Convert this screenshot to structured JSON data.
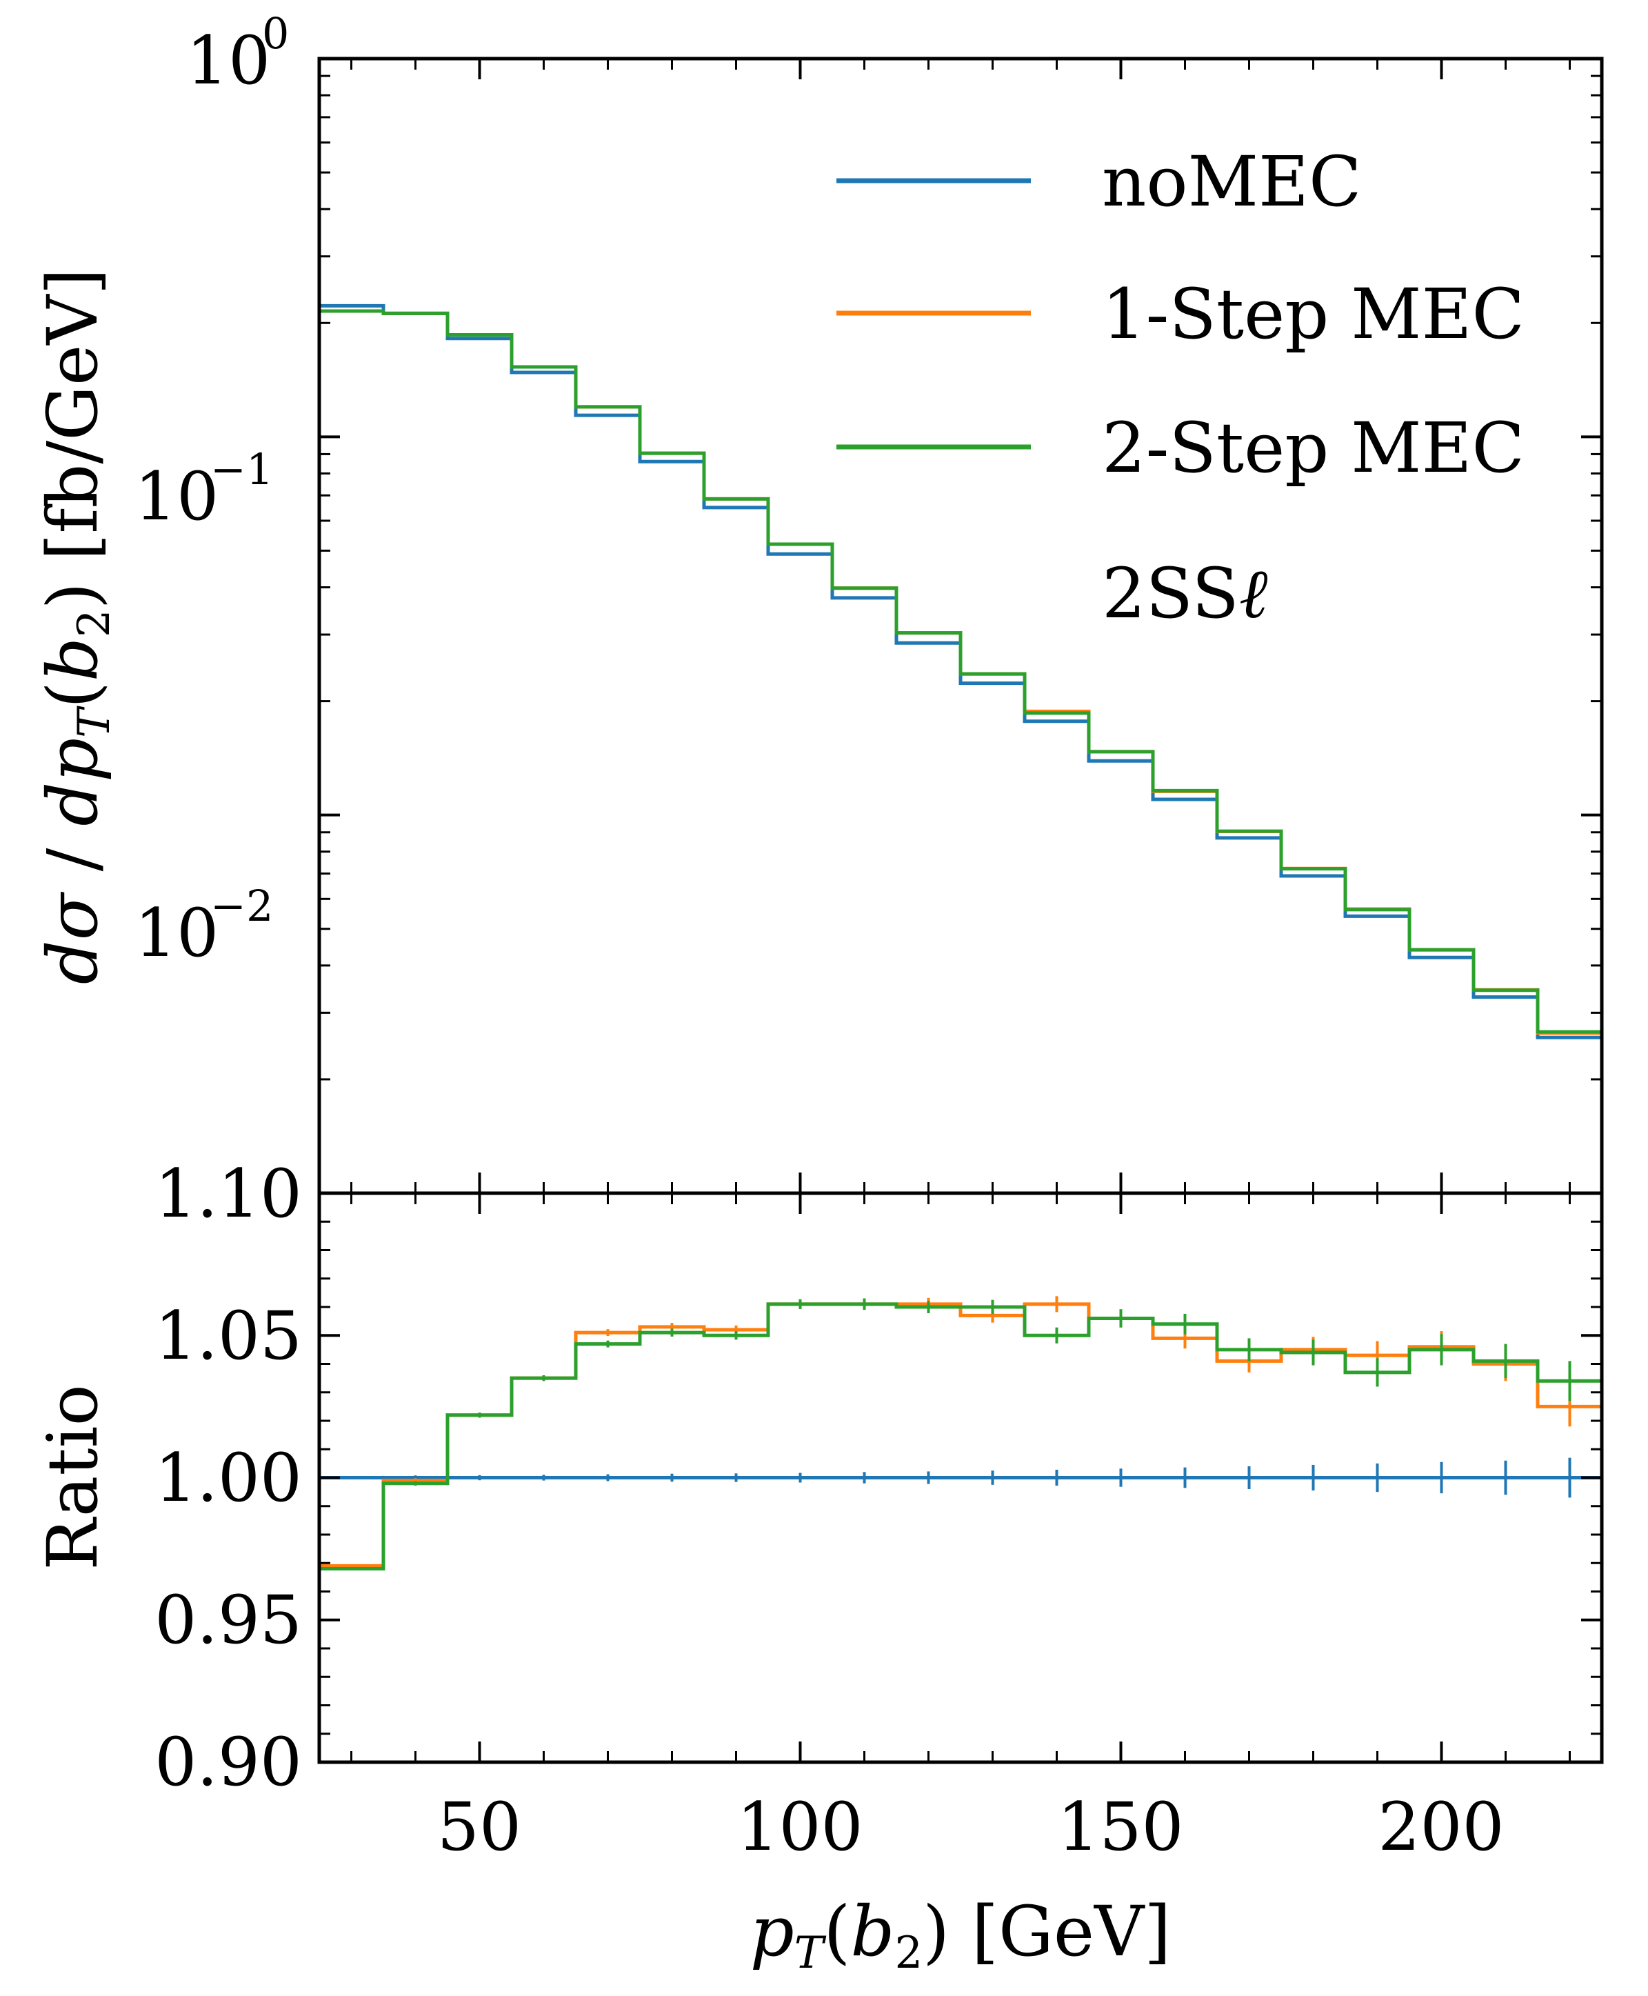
{
  "colors": {
    "noMEC": "#1f77b4",
    "oneStep": "#ff7f0e",
    "twoStep": "#2ca02c",
    "axis": "#000000"
  },
  "chart_data": [
    {
      "type": "line",
      "step": true,
      "yscale": "log",
      "bin_edges": [
        25,
        35,
        45,
        55,
        65,
        75,
        85,
        95,
        105,
        115,
        125,
        135,
        145,
        155,
        165,
        175,
        185,
        195,
        205,
        215,
        225
      ],
      "xlim": [
        25,
        225
      ],
      "ylim": [
        0.001,
        1
      ],
      "ylabel_parts": {
        "d1": "d",
        "sigma": "σ",
        "slash": " / ",
        "d2": "d",
        "p": "p",
        "T": "T",
        "open": "(",
        "b": "b",
        "two": "2",
        "close": ")",
        "unit": " [fb/GeV]"
      },
      "yticks": [
        {
          "base": "10",
          "exp": "0",
          "value": 1
        },
        {
          "base": "10",
          "exp": "−1",
          "value": 0.1
        },
        {
          "base": "10",
          "exp": "−2",
          "value": 0.01
        }
      ],
      "legend": {
        "position": "top-right",
        "entries": [
          "noMEC",
          "1-Step MEC",
          "2-Step MEC"
        ],
        "annotation": {
          "prefix": "2SS",
          "symbol": "ℓ"
        }
      },
      "series": [
        {
          "name": "noMEC",
          "values": [
            0.222,
            0.212,
            0.182,
            0.148,
            0.114,
            0.086,
            0.065,
            0.049,
            0.0375,
            0.0285,
            0.0223,
            0.0177,
            0.0139,
            0.011,
            0.0087,
            0.0069,
            0.0054,
            0.0042,
            0.0033,
            0.00258
          ]
        },
        {
          "name": "1-Step MEC",
          "values": [
            0.215,
            0.212,
            0.186,
            0.153,
            0.12,
            0.0905,
            0.0685,
            0.052,
            0.0398,
            0.0303,
            0.0236,
            0.0188,
            0.0147,
            0.01155,
            0.00905,
            0.00722,
            0.00564,
            0.0044,
            0.00345,
            0.00265
          ]
        },
        {
          "name": "2-Step MEC",
          "values": [
            0.215,
            0.212,
            0.186,
            0.153,
            0.12,
            0.0905,
            0.0685,
            0.052,
            0.0398,
            0.0303,
            0.0236,
            0.0186,
            0.0147,
            0.0116,
            0.00906,
            0.00721,
            0.00562,
            0.0044,
            0.00344,
            0.00267
          ]
        }
      ]
    },
    {
      "type": "line",
      "step": true,
      "bin_edges": [
        25,
        35,
        45,
        55,
        65,
        75,
        85,
        95,
        105,
        115,
        125,
        135,
        145,
        155,
        165,
        175,
        185,
        195,
        205,
        215,
        225
      ],
      "xlim": [
        25,
        225
      ],
      "ylim": [
        0.9,
        1.1
      ],
      "xlabel_parts": {
        "p": "p",
        "T": "T",
        "open": "(",
        "b": "b",
        "two": "2",
        "close": ")",
        "unit": " [GeV]"
      },
      "ylabel": "Ratio",
      "xticks": [
        "50",
        "100",
        "150",
        "200"
      ],
      "yticks": [
        "0.90",
        "0.95",
        "1.00",
        "1.05",
        "1.10"
      ],
      "series": [
        {
          "name": "noMEC",
          "values": [
            1.0,
            1.0,
            1.0,
            1.0,
            1.0,
            1.0,
            1.0,
            1.0,
            1.0,
            1.0,
            1.0,
            1.0,
            1.0,
            1.0,
            1.0,
            1.0,
            1.0,
            1.0,
            1.0,
            1.0
          ],
          "errors": [
            0.0005,
            0.0008,
            0.0009,
            0.001,
            0.0012,
            0.0014,
            0.0015,
            0.0017,
            0.002,
            0.0022,
            0.0025,
            0.0028,
            0.0032,
            0.0036,
            0.004,
            0.0045,
            0.005,
            0.0055,
            0.006,
            0.007
          ]
        },
        {
          "name": "1-Step MEC",
          "values": [
            0.969,
            0.999,
            1.022,
            1.035,
            1.051,
            1.053,
            1.052,
            1.061,
            1.061,
            1.061,
            1.057,
            1.061,
            1.056,
            1.049,
            1.041,
            1.045,
            1.043,
            1.046,
            1.04,
            1.025
          ],
          "errors": [
            0.0005,
            0.0008,
            0.0009,
            0.001,
            0.0012,
            0.0014,
            0.0015,
            0.0017,
            0.002,
            0.0022,
            0.0025,
            0.0028,
            0.0032,
            0.0036,
            0.004,
            0.0045,
            0.005,
            0.0055,
            0.006,
            0.007
          ]
        },
        {
          "name": "2-Step MEC",
          "values": [
            0.968,
            0.998,
            1.022,
            1.035,
            1.047,
            1.051,
            1.05,
            1.061,
            1.061,
            1.06,
            1.06,
            1.05,
            1.056,
            1.054,
            1.045,
            1.044,
            1.037,
            1.045,
            1.041,
            1.034
          ],
          "errors": [
            0.0005,
            0.0008,
            0.0009,
            0.001,
            0.0012,
            0.0014,
            0.0015,
            0.0017,
            0.002,
            0.0022,
            0.0025,
            0.0028,
            0.0032,
            0.0036,
            0.004,
            0.0045,
            0.005,
            0.0055,
            0.006,
            0.007
          ]
        }
      ]
    }
  ]
}
